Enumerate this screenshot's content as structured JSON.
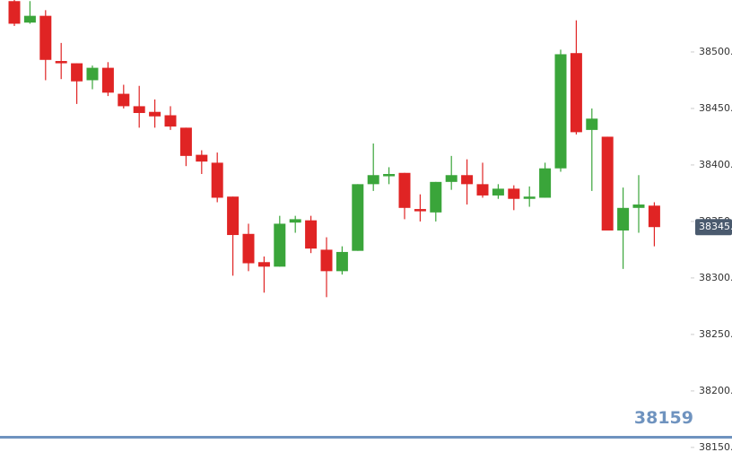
{
  "chart_data": {
    "type": "candlestick",
    "open": [
      38545,
      38526,
      38532,
      38492,
      38490,
      38475,
      38486,
      38463,
      38452,
      38447,
      38444,
      38433,
      38409,
      38402,
      38372,
      38339,
      38314,
      38310,
      38349,
      38351,
      38325,
      38306,
      38324,
      38383,
      38390,
      38393,
      38361,
      38358,
      38385,
      38391,
      38383,
      38373,
      38379,
      38370,
      38371,
      38397,
      38499,
      38431,
      38425,
      38342,
      38362,
      38364
    ],
    "high": [
      38546,
      38545,
      38537,
      38508,
      38490,
      38488,
      38491,
      38471,
      38470,
      38458,
      38452,
      38433,
      38413,
      38411,
      38372,
      38348,
      38319,
      38355,
      38355,
      38355,
      38336,
      38328,
      38383,
      38419,
      38398,
      38393,
      38374,
      38385,
      38408,
      38405,
      38402,
      38383,
      38382,
      38381,
      38402,
      38502,
      38528,
      38450,
      38425,
      38380,
      38391,
      38367
    ],
    "low": [
      38523,
      38525,
      38475,
      38476,
      38454,
      38467,
      38461,
      38450,
      38433,
      38433,
      38431,
      38399,
      38392,
      38367,
      38302,
      38306,
      38287,
      38310,
      38340,
      38322,
      38283,
      38303,
      38324,
      38377,
      38383,
      38352,
      38350,
      38350,
      38378,
      38365,
      38371,
      38370,
      38360,
      38363,
      38371,
      38394,
      38427,
      38377,
      38342,
      38308,
      38340,
      38328
    ],
    "close": [
      38525,
      38532,
      38493,
      38490,
      38474,
      38486,
      38464,
      38452,
      38446,
      38443,
      38434,
      38408,
      38403,
      38371,
      38338,
      38313,
      38310,
      38348,
      38352,
      38326,
      38306,
      38323,
      38383,
      38391,
      38392,
      38362,
      38359,
      38385,
      38391,
      38383,
      38373,
      38379,
      38370,
      38372,
      38397,
      38498,
      38429,
      38441,
      38342,
      38362,
      38365,
      38345
    ],
    "up_color": "#3aa53a",
    "down_color": "#e02424",
    "ylim": [
      38138,
      38546
    ],
    "yticks": [
      {
        "value": 38150,
        "label": "38150."
      },
      {
        "value": 38200,
        "label": "38200."
      },
      {
        "value": 38250,
        "label": "38250."
      },
      {
        "value": 38300,
        "label": "38300."
      },
      {
        "value": 38350,
        "label": "38350."
      },
      {
        "value": 38400,
        "label": "38400."
      },
      {
        "value": 38450,
        "label": "38450."
      },
      {
        "value": 38500,
        "label": "38500."
      }
    ],
    "last_price": {
      "value": 38345,
      "label": "38345."
    },
    "reference_line": {
      "value": 38159,
      "color": "#6f93bf"
    }
  }
}
